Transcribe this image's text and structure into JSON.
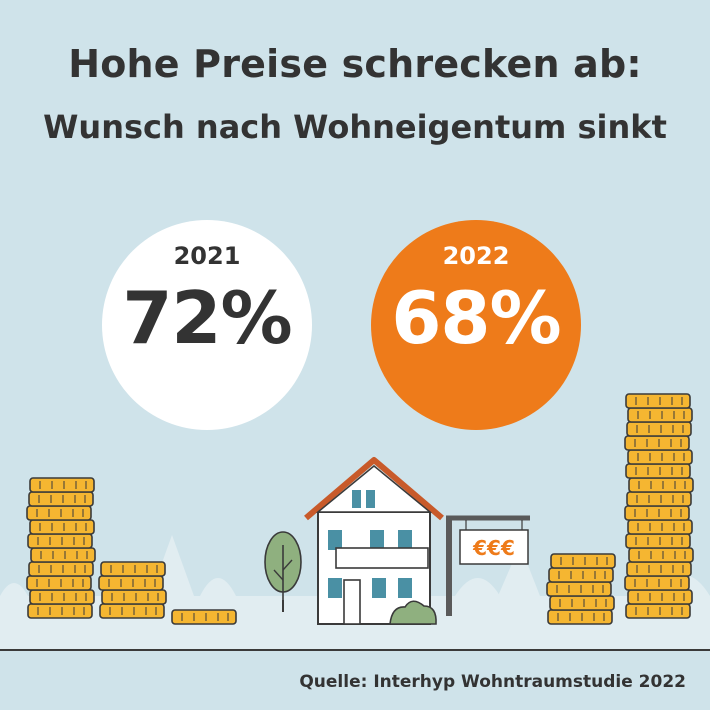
{
  "header": {
    "title_line1": "Hohe Preise schrecken ab:",
    "title_line2": "Wunsch nach Wohneigentum sinkt"
  },
  "stats": [
    {
      "year": "2021",
      "percent": "72%"
    },
    {
      "year": "2022",
      "percent": "68%"
    }
  ],
  "illustration": {
    "sign_text": "€€€",
    "icons": [
      "coin-stack-icon",
      "house-icon",
      "tree-icon",
      "bush-icon",
      "for-sale-sign-icon"
    ]
  },
  "footer": {
    "source": "Quelle: Interhyp Wohntraumstudie 2022"
  },
  "colors": {
    "background": "#cfe3ea",
    "accent_orange": "#ee7b1a",
    "coin": "#f5b631",
    "text": "#333333"
  }
}
